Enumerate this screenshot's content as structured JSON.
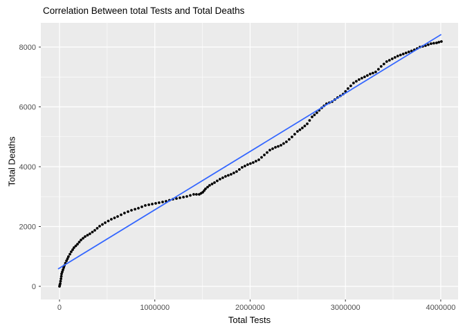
{
  "chart_data": {
    "type": "scatter",
    "title": "Correlation Between total Tests and Total Deaths",
    "xlabel": "Total Tests",
    "ylabel": "Total Deaths",
    "xlim": [
      -196000,
      4182000
    ],
    "ylim": [
      -440,
      8810
    ],
    "x_ticks": [
      0,
      1000000,
      2000000,
      3000000,
      4000000
    ],
    "x_tick_labels": [
      "0",
      "1000000",
      "2000000",
      "3000000",
      "4000000"
    ],
    "y_ticks": [
      0,
      2000,
      4000,
      6000,
      8000
    ],
    "y_tick_labels": [
      "0",
      "2000",
      "4000",
      "6000",
      "8000"
    ],
    "x_minor_ticks": [
      500000,
      1500000,
      2500000,
      3500000
    ],
    "y_minor_ticks": [
      1000,
      3000,
      5000,
      7000
    ],
    "grid": true,
    "legend": "none",
    "colors": {
      "panel_bg": "#EBEBEB",
      "grid_major": "#FFFFFF",
      "grid_minor": "#FFFFFF",
      "point": "#000000",
      "trend": "#3366FF",
      "tick_mark": "#333333",
      "tick_label": "#4D4D4D",
      "text": "#000000"
    },
    "series": [
      {
        "name": "observations",
        "type": "points",
        "color": "#000000",
        "points": [
          [
            0,
            0
          ],
          [
            3000,
            45
          ],
          [
            7000,
            92
          ],
          [
            11000,
            173
          ],
          [
            15000,
            254
          ],
          [
            19000,
            335
          ],
          [
            22000,
            416
          ],
          [
            29000,
            486
          ],
          [
            36000,
            555
          ],
          [
            44000,
            625
          ],
          [
            51000,
            694
          ],
          [
            62000,
            775
          ],
          [
            73000,
            856
          ],
          [
            84000,
            925
          ],
          [
            94000,
            994
          ],
          [
            109000,
            1075
          ],
          [
            123000,
            1156
          ],
          [
            138000,
            1225
          ],
          [
            152000,
            1295
          ],
          [
            171000,
            1353
          ],
          [
            189000,
            1410
          ],
          [
            207000,
            1480
          ],
          [
            225000,
            1549
          ],
          [
            247000,
            1607
          ],
          [
            269000,
            1665
          ],
          [
            294000,
            1711
          ],
          [
            319000,
            1757
          ],
          [
            345000,
            1815
          ],
          [
            370000,
            1873
          ],
          [
            396000,
            1942
          ],
          [
            421000,
            2012
          ],
          [
            450000,
            2070
          ],
          [
            479000,
            2127
          ],
          [
            512000,
            2185
          ],
          [
            544000,
            2243
          ],
          [
            577000,
            2289
          ],
          [
            610000,
            2335
          ],
          [
            646000,
            2393
          ],
          [
            682000,
            2451
          ],
          [
            719000,
            2497
          ],
          [
            755000,
            2543
          ],
          [
            792000,
            2578
          ],
          [
            828000,
            2613
          ],
          [
            864000,
            2659
          ],
          [
            900000,
            2705
          ],
          [
            937000,
            2728
          ],
          [
            973000,
            2751
          ],
          [
            1009000,
            2774
          ],
          [
            1045000,
            2797
          ],
          [
            1082000,
            2820
          ],
          [
            1118000,
            2844
          ],
          [
            1154000,
            2878
          ],
          [
            1190000,
            2913
          ],
          [
            1227000,
            2936
          ],
          [
            1263000,
            2959
          ],
          [
            1300000,
            2982
          ],
          [
            1336000,
            3005
          ],
          [
            1372000,
            3040
          ],
          [
            1408000,
            3075
          ],
          [
            1437000,
            3075
          ],
          [
            1466000,
            3075
          ],
          [
            1485000,
            3110
          ],
          [
            1503000,
            3144
          ],
          [
            1518000,
            3202
          ],
          [
            1532000,
            3260
          ],
          [
            1554000,
            3317
          ],
          [
            1575000,
            3375
          ],
          [
            1601000,
            3421
          ],
          [
            1626000,
            3468
          ],
          [
            1655000,
            3525
          ],
          [
            1684000,
            3583
          ],
          [
            1713000,
            3629
          ],
          [
            1742000,
            3676
          ],
          [
            1771000,
            3710
          ],
          [
            1800000,
            3745
          ],
          [
            1829000,
            3791
          ],
          [
            1858000,
            3838
          ],
          [
            1887000,
            3907
          ],
          [
            1916000,
            3977
          ],
          [
            1945000,
            4023
          ],
          [
            1974000,
            4069
          ],
          [
            2003000,
            4103
          ],
          [
            2032000,
            4138
          ],
          [
            2061000,
            4184
          ],
          [
            2091000,
            4231
          ],
          [
            2120000,
            4312
          ],
          [
            2149000,
            4393
          ],
          [
            2178000,
            4474
          ],
          [
            2207000,
            4555
          ],
          [
            2236000,
            4601
          ],
          [
            2265000,
            4647
          ],
          [
            2294000,
            4681
          ],
          [
            2323000,
            4716
          ],
          [
            2352000,
            4774
          ],
          [
            2381000,
            4832
          ],
          [
            2410000,
            4913
          ],
          [
            2439000,
            4994
          ],
          [
            2468000,
            5086
          ],
          [
            2497000,
            5179
          ],
          [
            2522000,
            5236
          ],
          [
            2548000,
            5294
          ],
          [
            2573000,
            5363
          ],
          [
            2599000,
            5433
          ],
          [
            2624000,
            5548
          ],
          [
            2650000,
            5664
          ],
          [
            2675000,
            5733
          ],
          [
            2700000,
            5803
          ],
          [
            2725000,
            5884
          ],
          [
            2751000,
            5965
          ],
          [
            2776000,
            6034
          ],
          [
            2802000,
            6104
          ],
          [
            2831000,
            6138
          ],
          [
            2860000,
            6173
          ],
          [
            2889000,
            6242
          ],
          [
            2918000,
            6312
          ],
          [
            2947000,
            6369
          ],
          [
            2976000,
            6427
          ],
          [
            3001000,
            6519
          ],
          [
            3027000,
            6612
          ],
          [
            3056000,
            6704
          ],
          [
            3085000,
            6797
          ],
          [
            3114000,
            6855
          ],
          [
            3143000,
            6913
          ],
          [
            3172000,
            6959
          ],
          [
            3201000,
            7005
          ],
          [
            3230000,
            7051
          ],
          [
            3259000,
            7098
          ],
          [
            3288000,
            7132
          ],
          [
            3317000,
            7167
          ],
          [
            3346000,
            7259
          ],
          [
            3375000,
            7352
          ],
          [
            3404000,
            7433
          ],
          [
            3433000,
            7514
          ],
          [
            3462000,
            7560
          ],
          [
            3491000,
            7607
          ],
          [
            3520000,
            7653
          ],
          [
            3549000,
            7699
          ],
          [
            3578000,
            7734
          ],
          [
            3607000,
            7769
          ],
          [
            3636000,
            7803
          ],
          [
            3665000,
            7838
          ],
          [
            3694000,
            7872
          ],
          [
            3724000,
            7907
          ],
          [
            3753000,
            7953
          ],
          [
            3782000,
            8000
          ],
          [
            3811000,
            8023
          ],
          [
            3840000,
            8046
          ],
          [
            3869000,
            8080
          ],
          [
            3898000,
            8115
          ],
          [
            3927000,
            8127
          ],
          [
            3956000,
            8139
          ],
          [
            3981000,
            8162
          ],
          [
            4007000,
            8185
          ]
        ]
      },
      {
        "name": "trend-line",
        "type": "line",
        "color": "#3366FF",
        "points": [
          [
            -15000,
            580
          ],
          [
            4005000,
            8420
          ]
        ]
      }
    ]
  }
}
